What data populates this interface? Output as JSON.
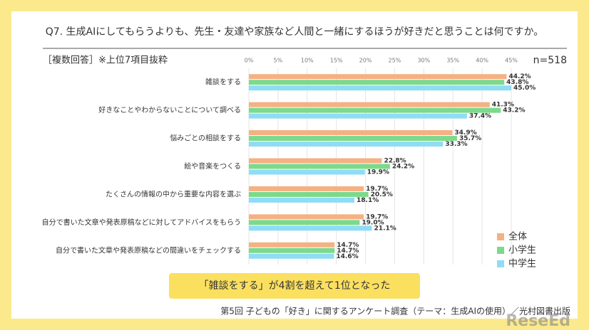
{
  "chart_data": {
    "type": "hbar",
    "title": "Q7. 生成AIにしてもらうよりも、先生・友達や家族など人間と一緒にするほうが好きだと思うことは何ですか。",
    "note": "［複数回答］※上位7項目抜粋",
    "n_label": "n=518",
    "callout": "「雑談をする」が4割を超えて1位となった",
    "source": "第5回 子どもの「好き」に関するアンケート調査（テーマ：生成AIの使用）／光村図書出版",
    "watermark": "ReseEd",
    "categories": [
      "雑談をする",
      "好きなことやわからないことについて調べる",
      "悩みごとの相談をする",
      "絵や音楽をつくる",
      "たくさんの情報の中から重要な内容を選ぶ",
      "自分で書いた文章や発表原稿などに対してアドバイスをもらう",
      "自分で書いた文章や発表原稿などの間違いをチェックする"
    ],
    "series": [
      {
        "name": "全体",
        "color": "#f4b183",
        "values": [
          44.2,
          41.3,
          34.9,
          22.8,
          19.7,
          19.7,
          14.7
        ],
        "value_labels": [
          "44.2%",
          "41.3%",
          "34.9%",
          "22.8%",
          "19.7%",
          "19.7%",
          "14.7%"
        ]
      },
      {
        "name": "小学生",
        "color": "#7dd98c",
        "values": [
          43.8,
          43.2,
          35.7,
          24.2,
          20.5,
          19.0,
          14.7
        ],
        "value_labels": [
          "43.8%",
          "43.2%",
          "35.7%",
          "24.2%",
          "20.5%",
          "19.0%",
          "14.7%"
        ]
      },
      {
        "name": "中学生",
        "color": "#8fdcf5",
        "values": [
          45.0,
          37.4,
          33.3,
          19.9,
          18.1,
          21.1,
          14.6
        ],
        "value_labels": [
          "45.0%",
          "37.4%",
          "33.3%",
          "19.9%",
          "18.1%",
          "21.1%",
          "14.6%"
        ]
      }
    ],
    "xlim": [
      0,
      45
    ],
    "xticks": [
      {
        "value": 0,
        "label": "0%"
      },
      {
        "value": 5,
        "label": "5%"
      },
      {
        "value": 10,
        "label": "10%"
      },
      {
        "value": 15,
        "label": "15%"
      },
      {
        "value": 20,
        "label": "20%"
      },
      {
        "value": 25,
        "label": "25%"
      },
      {
        "value": 30,
        "label": "30%"
      },
      {
        "value": 35,
        "label": "35%"
      },
      {
        "value": 40,
        "label": "40%"
      },
      {
        "value": 45,
        "label": "45%"
      }
    ],
    "grid": true
  }
}
